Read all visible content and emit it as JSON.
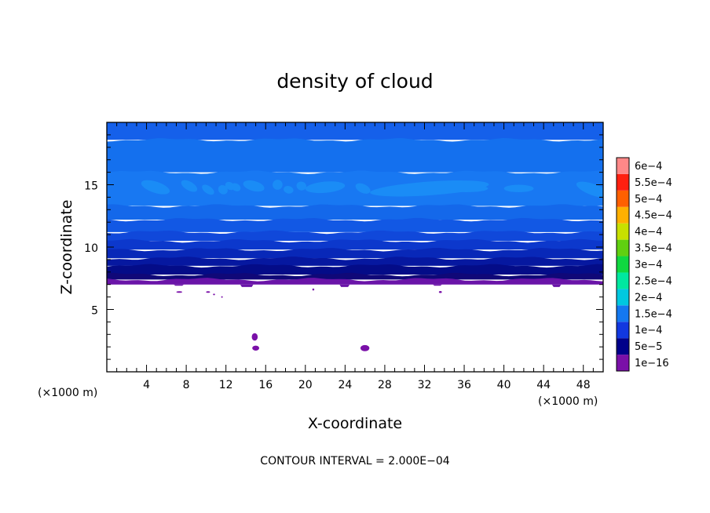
{
  "chart_data": {
    "type": "heatmap",
    "title": "density of cloud",
    "xlabel": "X-coordinate",
    "ylabel": "Z-coordinate",
    "x_unit": "(×1000 m)",
    "z_unit": "(×1000 m)",
    "xlim": [
      0,
      50
    ],
    "ylim": [
      0,
      20
    ],
    "x_ticks": [
      4,
      8,
      12,
      16,
      20,
      24,
      28,
      32,
      36,
      40,
      44,
      48
    ],
    "x_tick_labels": [
      "4",
      "8",
      "12",
      "16",
      "20",
      "24",
      "28",
      "32",
      "36",
      "40",
      "44",
      "48"
    ],
    "y_ticks": [
      5,
      10,
      15
    ],
    "y_tick_labels": [
      "5",
      "10",
      "15"
    ],
    "colorbar": {
      "levels": [
        {
          "label": "1e−16",
          "color": "#7a10a8"
        },
        {
          "label": "5e−5",
          "color": "#00008a"
        },
        {
          "label": "1e−4",
          "color": "#1238e0"
        },
        {
          "label": "1.5e−4",
          "color": "#1478f0"
        },
        {
          "label": "2e−4",
          "color": "#00c8e0"
        },
        {
          "label": "2.5e−4",
          "color": "#00e8a0"
        },
        {
          "label": "3e−4",
          "color": "#10d840"
        },
        {
          "label": "3.5e−4",
          "color": "#60d010"
        },
        {
          "label": "4e−4",
          "color": "#c8e000"
        },
        {
          "label": "4.5e−4",
          "color": "#ffb000"
        },
        {
          "label": "5e−4",
          "color": "#ff6000"
        },
        {
          "label": "5.5e−4",
          "color": "#ff2010"
        },
        {
          "label": "6e−4",
          "color": "#ff8888"
        }
      ]
    },
    "field_bands": [
      {
        "z_from": 18.6,
        "z_to": 20,
        "color": "#1560ea"
      },
      {
        "z_from": 16.0,
        "z_to": 18.6,
        "color": "#1470ee"
      },
      {
        "z_from": 13.3,
        "z_to": 16.0,
        "color": "#1878f2"
      },
      {
        "z_from": 12.2,
        "z_to": 13.3,
        "color": "#1468ea"
      },
      {
        "z_from": 11.2,
        "z_to": 12.2,
        "color": "#1258e4"
      },
      {
        "z_from": 10.5,
        "z_to": 11.2,
        "color": "#1048da"
      },
      {
        "z_from": 9.8,
        "z_to": 10.5,
        "color": "#0c38cc"
      },
      {
        "z_from": 9.1,
        "z_to": 9.8,
        "color": "#0828b8"
      },
      {
        "z_from": 8.5,
        "z_to": 9.1,
        "color": "#0618a0"
      },
      {
        "z_from": 7.8,
        "z_to": 8.5,
        "color": "#040c88"
      },
      {
        "z_from": 7.4,
        "z_to": 7.8,
        "color": "#100878"
      },
      {
        "z_from": 7.0,
        "z_to": 7.4,
        "color": "#6a14a8"
      }
    ],
    "cloud_base_z": 7.0,
    "light_patches": [
      {
        "x": 4.9,
        "z": 14.8,
        "rx": 1.5,
        "rz": 0.45,
        "angle": 18
      },
      {
        "x": 8.3,
        "z": 14.9,
        "rx": 0.9,
        "rz": 0.35,
        "angle": 30
      },
      {
        "x": 10.2,
        "z": 14.6,
        "rx": 0.7,
        "rz": 0.3,
        "angle": 35
      },
      {
        "x": 11.7,
        "z": 14.6,
        "rx": 0.5,
        "rz": 0.35,
        "angle": 40
      },
      {
        "x": 12.4,
        "z": 14.9,
        "rx": 0.5,
        "rz": 0.3,
        "angle": 30
      },
      {
        "x": 13.0,
        "z": 14.8,
        "rx": 0.5,
        "rz": 0.3,
        "angle": 30
      },
      {
        "x": 14.8,
        "z": 14.9,
        "rx": 1.1,
        "rz": 0.4,
        "angle": 15
      },
      {
        "x": 17.2,
        "z": 15.0,
        "rx": 0.5,
        "rz": 0.4,
        "angle": 20
      },
      {
        "x": 18.3,
        "z": 14.6,
        "rx": 0.5,
        "rz": 0.3,
        "angle": 15
      },
      {
        "x": 19.6,
        "z": 14.9,
        "rx": 0.5,
        "rz": 0.35,
        "angle": 15
      },
      {
        "x": 22.0,
        "z": 14.8,
        "rx": 2.0,
        "rz": 0.45,
        "angle": -5
      },
      {
        "x": 25.8,
        "z": 14.7,
        "rx": 0.8,
        "rz": 0.35,
        "angle": 25
      },
      {
        "x": 32.5,
        "z": 14.7,
        "rx": 6.0,
        "rz": 0.55,
        "angle": -4
      },
      {
        "x": 36.2,
        "z": 14.7,
        "rx": 2.2,
        "rz": 0.3,
        "angle": 0
      },
      {
        "x": 41.5,
        "z": 14.7,
        "rx": 1.5,
        "rz": 0.3,
        "angle": 0
      },
      {
        "x": 49.0,
        "z": 14.6,
        "rx": 1.8,
        "rz": 0.45,
        "angle": 20
      }
    ],
    "specks": [
      {
        "x": 14.9,
        "z": 2.8,
        "rx": 0.3,
        "rz": 0.3
      },
      {
        "x": 15.0,
        "z": 1.9,
        "rx": 0.35,
        "rz": 0.2
      },
      {
        "x": 26.0,
        "z": 1.9,
        "rx": 0.45,
        "rz": 0.25
      },
      {
        "x": 7.3,
        "z": 6.4,
        "rx": 0.3,
        "rz": 0.06
      },
      {
        "x": 10.2,
        "z": 6.4,
        "rx": 0.2,
        "rz": 0.06
      },
      {
        "x": 10.8,
        "z": 6.2,
        "rx": 0.1,
        "rz": 0.06
      },
      {
        "x": 11.6,
        "z": 6.0,
        "rx": 0.06,
        "rz": 0.06
      },
      {
        "x": 20.8,
        "z": 6.6,
        "rx": 0.1,
        "rz": 0.08
      },
      {
        "x": 33.6,
        "z": 6.4,
        "rx": 0.15,
        "rz": 0.08
      }
    ],
    "base_bumps": [
      {
        "x_from": 6.9,
        "x_to": 7.6,
        "z": 6.9
      },
      {
        "x_from": 13.6,
        "x_to": 14.6,
        "z": 6.8
      },
      {
        "x_from": 23.6,
        "x_to": 24.3,
        "z": 6.8
      },
      {
        "x_from": 33.0,
        "x_to": 33.6,
        "z": 6.9
      },
      {
        "x_from": 45.0,
        "x_to": 45.6,
        "z": 6.8
      }
    ]
  },
  "footer": {
    "contour_interval": "CONTOUR INTERVAL = 2.000E−04"
  }
}
